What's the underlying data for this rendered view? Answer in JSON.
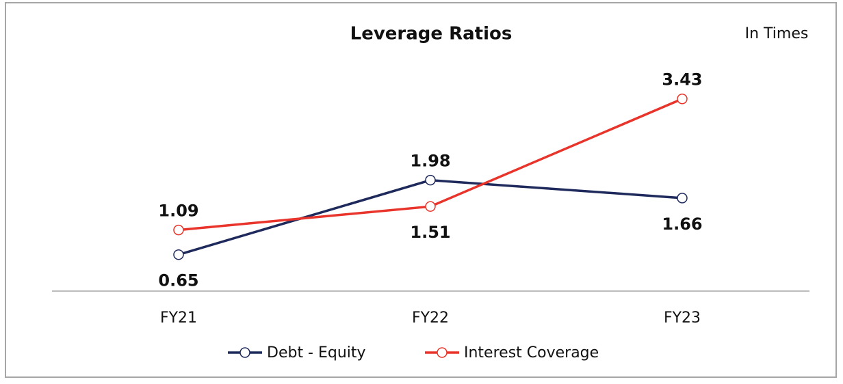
{
  "chart_data": {
    "type": "line",
    "title": "Leverage Ratios",
    "subtitle": "In Times",
    "categories": [
      "FY21",
      "FY22",
      "FY23"
    ],
    "series": [
      {
        "name": "Debt - Equity",
        "color": "#1f2a5c",
        "values": [
          0.65,
          1.98,
          1.66
        ]
      },
      {
        "name": "Interest Coverage",
        "color": "#e8342a",
        "values": [
          1.09,
          1.51,
          3.43
        ]
      }
    ],
    "ylim": [
      0,
      4
    ],
    "grid": false,
    "legend": "bottom"
  }
}
